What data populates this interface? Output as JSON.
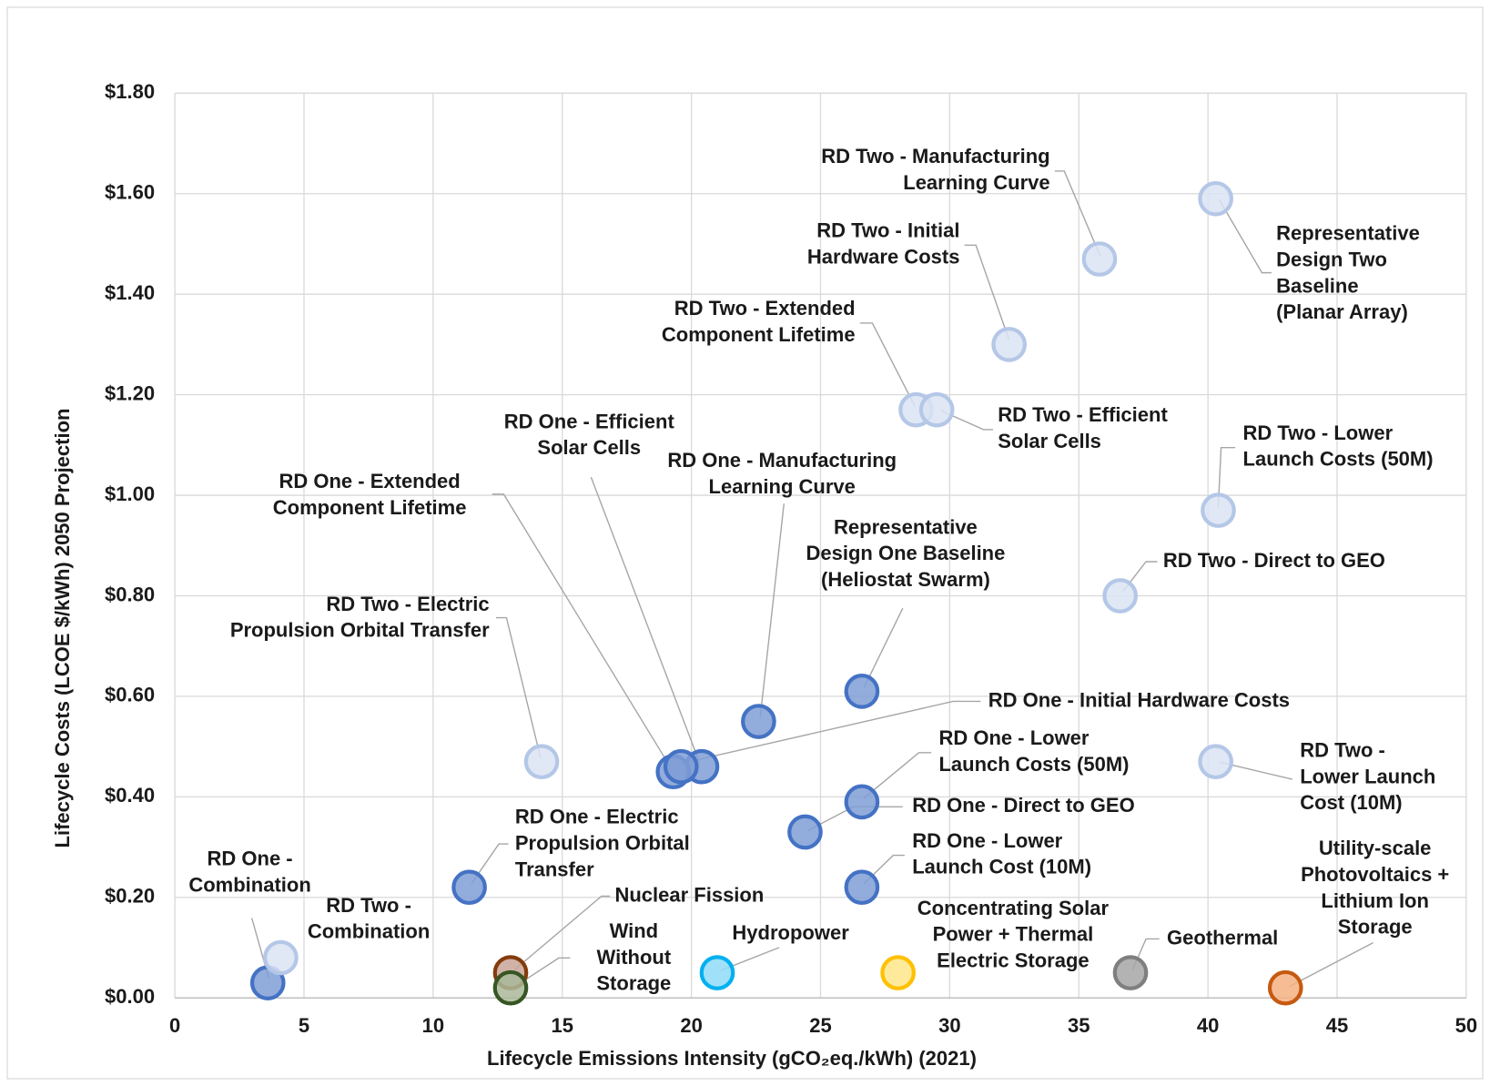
{
  "chart_data": {
    "type": "scatter",
    "x_label": "Lifecycle Emissions Intensity (gCO₂eq./kWh) (2021)",
    "y_label": "Lifecycle Costs (LCOE $/kWh) 2050 Projection",
    "xlim": [
      0,
      50
    ],
    "xticks": [
      0,
      5,
      10,
      15,
      20,
      25,
      30,
      35,
      40,
      45,
      50
    ],
    "ylim": [
      0,
      1.8
    ],
    "yticks": [
      {
        "value": 0,
        "label": "$0.00"
      },
      {
        "value": 0.2,
        "label": "$0.20"
      },
      {
        "value": 0.4,
        "label": "$0.40"
      },
      {
        "value": 0.6,
        "label": "$0.60"
      },
      {
        "value": 0.8,
        "label": "$0.80"
      },
      {
        "value": 1.0,
        "label": "$1.00"
      },
      {
        "value": 1.2,
        "label": "$1.20"
      },
      {
        "value": 1.4,
        "label": "$1.40"
      },
      {
        "value": 1.6,
        "label": "$1.60"
      },
      {
        "value": 1.8,
        "label": "$1.80"
      }
    ],
    "grid": true,
    "points": [
      {
        "label": [
          "RD Two - Manufacturing",
          "Learning Curve"
        ],
        "x": 35.8,
        "y": 1.47,
        "color": "#b4c7e7",
        "fill": "#dae3f3"
      },
      {
        "label": [
          "Representative",
          "Design Two",
          "Baseline",
          "(Planar Array)"
        ],
        "x": 40.3,
        "y": 1.59,
        "color": "#b4c7e7",
        "fill": "#dae3f3"
      },
      {
        "label": [
          "RD Two - Initial",
          "Hardware Costs"
        ],
        "x": 32.3,
        "y": 1.3,
        "color": "#b4c7e7",
        "fill": "#dae3f3"
      },
      {
        "label": [
          "RD Two - Extended",
          "Component Lifetime"
        ],
        "x": 28.7,
        "y": 1.17,
        "color": "#b4c7e7",
        "fill": "#dae3f3"
      },
      {
        "label": [
          "RD Two - Efficient",
          "Solar Cells"
        ],
        "x": 29.5,
        "y": 1.17,
        "color": "#b4c7e7",
        "fill": "#dae3f3"
      },
      {
        "label": [
          "RD Two - Lower",
          "Launch Costs (50M)"
        ],
        "x": 40.4,
        "y": 0.97,
        "color": "#b4c7e7",
        "fill": "#dae3f3"
      },
      {
        "label": [
          "RD Two - Direct to GEO"
        ],
        "x": 36.6,
        "y": 0.8,
        "color": "#b4c7e7",
        "fill": "#dae3f3"
      },
      {
        "label": [
          "Representative",
          "Design One Baseline",
          "(Heliostat Swarm)"
        ],
        "x": 26.6,
        "y": 0.61,
        "color": "#4472c4",
        "fill": "#7f9ed6"
      },
      {
        "label": [
          "RD One - Manufacturing",
          "Learning Curve"
        ],
        "x": 22.6,
        "y": 0.55,
        "color": "#4472c4",
        "fill": "#7f9ed6"
      },
      {
        "label": [
          "RD One - Efficient",
          "Solar Cells"
        ],
        "x": 20.4,
        "y": 0.46,
        "color": "#4472c4",
        "fill": "#7f9ed6"
      },
      {
        "label": [
          "RD One - Extended",
          "Component Lifetime"
        ],
        "x": 19.3,
        "y": 0.45,
        "color": "#4472c4",
        "fill": "#7f9ed6"
      },
      {
        "label": [
          "RD One - Initial Hardware Costs"
        ],
        "x": 19.6,
        "y": 0.46,
        "color": "#4472c4",
        "fill": "#7f9ed6"
      },
      {
        "label": [
          "RD Two - Electric",
          "Propulsion Orbital Transfer"
        ],
        "x": 14.2,
        "y": 0.47,
        "color": "#b4c7e7",
        "fill": "#dae3f3"
      },
      {
        "label": [
          "RD Two -",
          "Lower Launch",
          "Cost (10M)"
        ],
        "x": 40.3,
        "y": 0.47,
        "color": "#b4c7e7",
        "fill": "#dae3f3"
      },
      {
        "label": [
          "RD One - Lower",
          "Launch Costs (50M)"
        ],
        "x": 26.6,
        "y": 0.39,
        "color": "#4472c4",
        "fill": "#7f9ed6"
      },
      {
        "label": [
          "RD One - Direct to GEO"
        ],
        "x": 24.4,
        "y": 0.33,
        "color": "#4472c4",
        "fill": "#7f9ed6"
      },
      {
        "label": [
          "RD One - Lower",
          "Launch Cost (10M)"
        ],
        "x": 26.6,
        "y": 0.22,
        "color": "#4472c4",
        "fill": "#7f9ed6"
      },
      {
        "label": [
          "RD One - Electric",
          "Propulsion Orbital",
          "Transfer"
        ],
        "x": 11.4,
        "y": 0.22,
        "color": "#4472c4",
        "fill": "#7f9ed6"
      },
      {
        "label": [
          "RD One -",
          "Combination"
        ],
        "x": 3.6,
        "y": 0.03,
        "color": "#4472c4",
        "fill": "#7f9ed6"
      },
      {
        "label": [
          "RD Two -",
          "Combination"
        ],
        "x": 4.1,
        "y": 0.08,
        "color": "#b4c7e7",
        "fill": "#dae3f3"
      },
      {
        "label": [
          "Nuclear Fission"
        ],
        "x": 13.0,
        "y": 0.05,
        "color": "#843c0c",
        "fill": "#c9a596"
      },
      {
        "label": [
          "Wind",
          "Without",
          "Storage"
        ],
        "x": 13.0,
        "y": 0.02,
        "color": "#375623",
        "fill": "#a9b99a"
      },
      {
        "label": [
          "Hydropower"
        ],
        "x": 21.0,
        "y": 0.05,
        "color": "#00b0f0",
        "fill": "#8fdcf8"
      },
      {
        "label": [
          "Concentrating Solar",
          "Power + Thermal",
          "Electric Storage"
        ],
        "x": 28.0,
        "y": 0.05,
        "color": "#ffc000",
        "fill": "#ffe588"
      },
      {
        "label": [
          "Geothermal"
        ],
        "x": 37.0,
        "y": 0.05,
        "color": "#7f7f7f",
        "fill": "#a6a6a6"
      },
      {
        "label": [
          "Utility-scale",
          "Photovoltaics +",
          "Lithium Ion",
          "Storage"
        ],
        "x": 43.0,
        "y": 0.02,
        "color": "#c55a11",
        "fill": "#f4b183"
      }
    ]
  }
}
